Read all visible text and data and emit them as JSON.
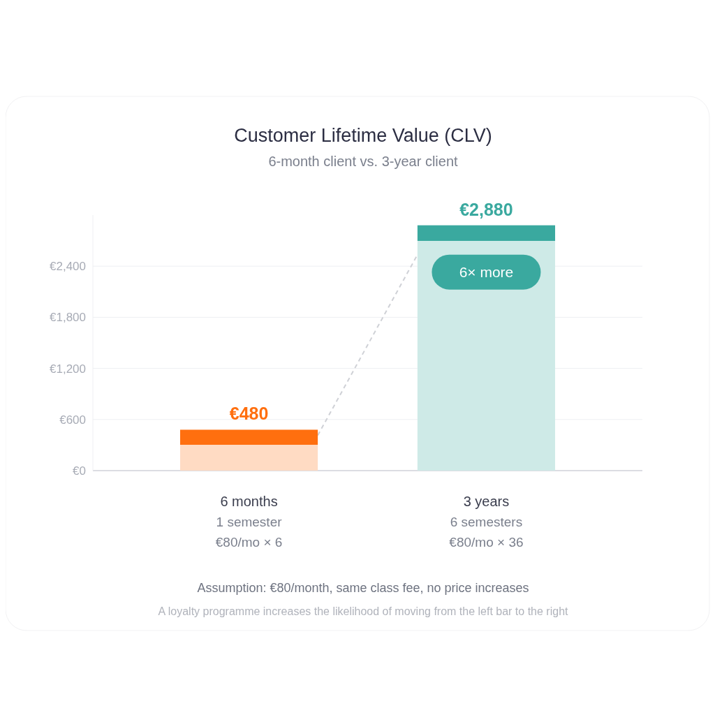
{
  "chart_data": {
    "type": "bar",
    "title": "Customer Lifetime Value (CLV)",
    "subtitle": "6-month client vs. 3-year client",
    "categories": [
      "6 months\n1 semester\n€80/mo × 6",
      "3 years\n6 semesters\n€80/mo × 36"
    ],
    "values": [
      480,
      2880
    ],
    "colors": [
      "#ff6f0f",
      "#3aa99f"
    ],
    "value_labels": [
      "€480",
      "€2,880"
    ],
    "ylim": [
      0,
      3000
    ],
    "yticks": [
      {
        "value": 0,
        "label": "€0"
      },
      {
        "value": 600,
        "label": "€600"
      },
      {
        "value": 1200,
        "label": "€1,200"
      },
      {
        "value": 1800,
        "label": "€1,800"
      },
      {
        "value": 2400,
        "label": "€2,400"
      }
    ],
    "grid": "y",
    "annotations": [
      "6× more",
      "Assumption: €80/month, same class fee, no price increases",
      "A loyalty programme increases the likelihood of moving from the left bar to the right"
    ]
  }
}
